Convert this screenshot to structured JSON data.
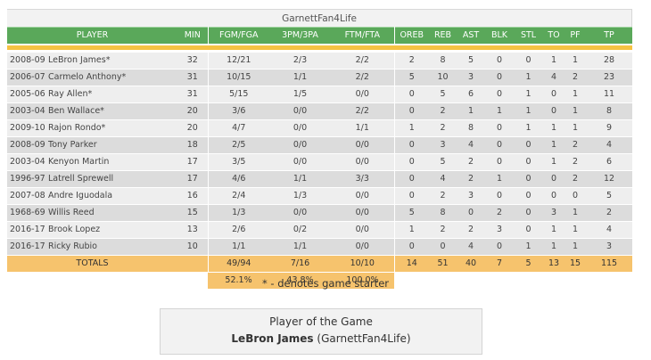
{
  "header": {
    "team_name": "GarnettFan4Life"
  },
  "columns": [
    "PLAYER",
    "MIN",
    "FGM/FGA",
    "3PM/3PA",
    "FTM/FTA",
    "OREB",
    "REB",
    "AST",
    "BLK",
    "STL",
    "TO",
    "PF",
    "TP"
  ],
  "players": [
    {
      "year": "2008-09",
      "name": "LeBron James*",
      "min": "32",
      "fg": "12/21",
      "tp3": "2/3",
      "ft": "2/2",
      "oreb": "2",
      "reb": "8",
      "ast": "5",
      "blk": "0",
      "stl": "0",
      "to": "1",
      "pf": "1",
      "pts": "28"
    },
    {
      "year": "2006-07",
      "name": "Carmelo Anthony*",
      "min": "31",
      "fg": "10/15",
      "tp3": "1/1",
      "ft": "2/2",
      "oreb": "5",
      "reb": "10",
      "ast": "3",
      "blk": "0",
      "stl": "1",
      "to": "4",
      "pf": "2",
      "pts": "23"
    },
    {
      "year": "2005-06",
      "name": "Ray Allen*",
      "min": "31",
      "fg": "5/15",
      "tp3": "1/5",
      "ft": "0/0",
      "oreb": "0",
      "reb": "5",
      "ast": "6",
      "blk": "0",
      "stl": "1",
      "to": "0",
      "pf": "1",
      "pts": "11"
    },
    {
      "year": "2003-04",
      "name": "Ben Wallace*",
      "min": "20",
      "fg": "3/6",
      "tp3": "0/0",
      "ft": "2/2",
      "oreb": "0",
      "reb": "2",
      "ast": "1",
      "blk": "1",
      "stl": "1",
      "to": "0",
      "pf": "1",
      "pts": "8"
    },
    {
      "year": "2009-10",
      "name": "Rajon Rondo*",
      "min": "20",
      "fg": "4/7",
      "tp3": "0/0",
      "ft": "1/1",
      "oreb": "1",
      "reb": "2",
      "ast": "8",
      "blk": "0",
      "stl": "1",
      "to": "1",
      "pf": "1",
      "pts": "9"
    },
    {
      "year": "2008-09",
      "name": "Tony Parker",
      "min": "18",
      "fg": "2/5",
      "tp3": "0/0",
      "ft": "0/0",
      "oreb": "0",
      "reb": "3",
      "ast": "4",
      "blk": "0",
      "stl": "0",
      "to": "1",
      "pf": "2",
      "pts": "4"
    },
    {
      "year": "2003-04",
      "name": "Kenyon Martin",
      "min": "17",
      "fg": "3/5",
      "tp3": "0/0",
      "ft": "0/0",
      "oreb": "0",
      "reb": "5",
      "ast": "2",
      "blk": "0",
      "stl": "0",
      "to": "1",
      "pf": "2",
      "pts": "6"
    },
    {
      "year": "1996-97",
      "name": "Latrell Sprewell",
      "min": "17",
      "fg": "4/6",
      "tp3": "1/1",
      "ft": "3/3",
      "oreb": "0",
      "reb": "4",
      "ast": "2",
      "blk": "1",
      "stl": "0",
      "to": "0",
      "pf": "2",
      "pts": "12"
    },
    {
      "year": "2007-08",
      "name": "Andre Iguodala",
      "min": "16",
      "fg": "2/4",
      "tp3": "1/3",
      "ft": "0/0",
      "oreb": "0",
      "reb": "2",
      "ast": "3",
      "blk": "0",
      "stl": "0",
      "to": "0",
      "pf": "0",
      "pts": "5"
    },
    {
      "year": "1968-69",
      "name": "Willis Reed",
      "min": "15",
      "fg": "1/3",
      "tp3": "0/0",
      "ft": "0/0",
      "oreb": "5",
      "reb": "8",
      "ast": "0",
      "blk": "2",
      "stl": "0",
      "to": "3",
      "pf": "1",
      "pts": "2"
    },
    {
      "year": "2016-17",
      "name": "Brook Lopez",
      "min": "13",
      "fg": "2/6",
      "tp3": "0/2",
      "ft": "0/0",
      "oreb": "1",
      "reb": "2",
      "ast": "2",
      "blk": "3",
      "stl": "0",
      "to": "1",
      "pf": "1",
      "pts": "4"
    },
    {
      "year": "2016-17",
      "name": "Ricky Rubio",
      "min": "10",
      "fg": "1/1",
      "tp3": "1/1",
      "ft": "0/0",
      "oreb": "0",
      "reb": "0",
      "ast": "4",
      "blk": "0",
      "stl": "1",
      "to": "1",
      "pf": "1",
      "pts": "3"
    }
  ],
  "totals": {
    "label": "TOTALS",
    "fg": "49/94",
    "tp3": "7/16",
    "ft": "10/10",
    "oreb": "14",
    "reb": "51",
    "ast": "40",
    "blk": "7",
    "stl": "5",
    "to": "13",
    "pf": "15",
    "pts": "115"
  },
  "percentages": {
    "fg": "52.1%",
    "tp3": "43.8%",
    "ft": "100.0%"
  },
  "starter_note": "* - denotes game starter",
  "player_of_game": {
    "title": "Player of the Game",
    "name": "LeBron James",
    "team": "(GarnettFan4Life)"
  },
  "colors": {
    "header_green": "#5aa85a",
    "accent_gold": "#f6c242",
    "totals_orange": "#f6c36d",
    "link_blue": "#2e64b0"
  }
}
